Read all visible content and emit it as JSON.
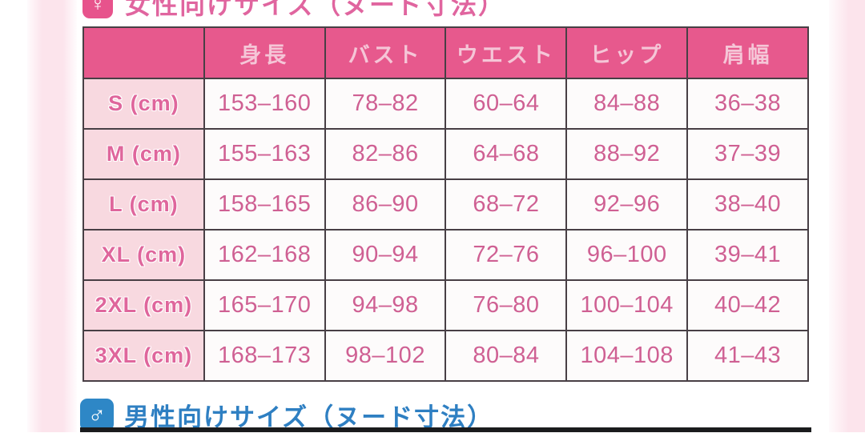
{
  "women_section": {
    "title": "女性向けサイズ（ヌード寸法）",
    "icon": "female-symbol",
    "icon_glyph": "♀",
    "accent_color": "#e7538c",
    "title_color": "#e0659f"
  },
  "size_table": {
    "columns": [
      "",
      "身長",
      "バスト",
      "ウエスト",
      "ヒップ",
      "肩幅"
    ],
    "rows": [
      {
        "label": "S (cm)",
        "values": [
          "153–160",
          "78–82",
          "60–64",
          "84–88",
          "36–38"
        ]
      },
      {
        "label": "M (cm)",
        "values": [
          "155–163",
          "82–86",
          "64–68",
          "88–92",
          "37–39"
        ]
      },
      {
        "label": "L (cm)",
        "values": [
          "158–165",
          "86–90",
          "68–72",
          "92–96",
          "38–40"
        ]
      },
      {
        "label": "XL (cm)",
        "values": [
          "162–168",
          "90–94",
          "72–76",
          "96–100",
          "39–41"
        ]
      },
      {
        "label": "2XL (cm)",
        "values": [
          "165–170",
          "94–98",
          "76–80",
          "100–104",
          "40–42"
        ]
      },
      {
        "label": "3XL (cm)",
        "values": [
          "168–173",
          "98–102",
          "80–84",
          "104–108",
          "41–43"
        ]
      }
    ]
  },
  "men_section": {
    "title": "男性向けサイズ（ヌード寸法）",
    "icon": "male-symbol",
    "icon_glyph": "♂",
    "accent_color": "#2e87c6",
    "title_color": "#2e7fc2"
  },
  "colors": {
    "table_header_bg": "#e7598d",
    "table_header_text": "#f5c6d7",
    "label_cell_bg": "#f8d9e0",
    "label_cell_text": "#df669c",
    "value_cell_text": "#cf6093",
    "grid_border": "#483f45",
    "margin_band": "#fce4ec",
    "men_table_border": "#1a1b1d"
  }
}
